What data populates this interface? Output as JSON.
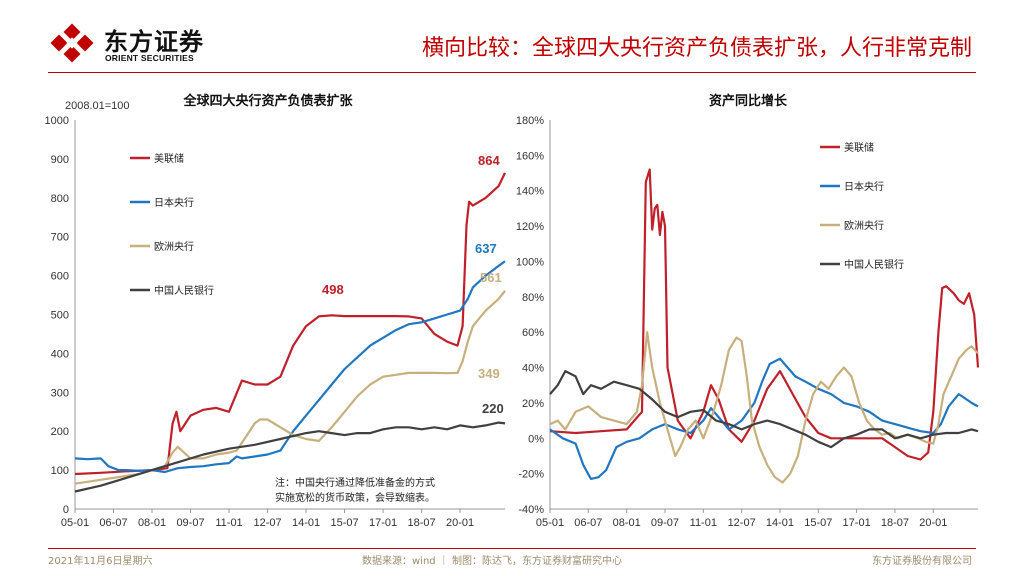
{
  "header": {
    "logo_cn": "东方证券",
    "logo_en": "ORIENT SECURITIES",
    "title": "横向比较：全球四大央行资产负债表扩张，人行非常克制"
  },
  "footer": {
    "date": "2021年11月6日星期六",
    "source": "数据来源：wind ｜ 制图：陈达飞，东方证券财富研究中心",
    "company": "东方证券股份有限公司"
  },
  "colors": {
    "fed": "#c0202a",
    "boj": "#1f77c4",
    "ecb": "#c7b07d",
    "pboc": "#404040",
    "accent": "#c00000"
  },
  "chart_data": [
    {
      "type": "line",
      "title": "全球四大央行资产负债表扩张",
      "unit_label": "2008.01=100",
      "ylim": [
        0,
        1000
      ],
      "yticks": [
        "0",
        "100",
        "200",
        "300",
        "400",
        "500",
        "600",
        "700",
        "800",
        "900",
        "1000"
      ],
      "xlim": [
        2005.0,
        2021.75
      ],
      "xticks": [
        "05-01",
        "06-07",
        "08-01",
        "09-07",
        "11-01",
        "12-07",
        "14-01",
        "15-07",
        "17-01",
        "18-07",
        "20-01"
      ],
      "xtick_positions": [
        2005.0,
        2006.5,
        2008.0,
        2009.5,
        2011.0,
        2012.5,
        2014.0,
        2015.5,
        2017.0,
        2018.5,
        2020.0
      ],
      "legend": [
        "美联储",
        "日本央行",
        "欧洲央行",
        "中国人民银行"
      ],
      "note_lines": [
        "注：中国央行通过降低准备金的方式",
        "实施宽松的货币政策，会导致缩表。"
      ],
      "annotations": [
        {
          "text": "864",
          "series": "美联储",
          "x": 2021.6,
          "y": 864
        },
        {
          "text": "498",
          "series": "美联储",
          "x": 2014.8,
          "y": 498
        },
        {
          "text": "637",
          "series": "日本央行",
          "x": 2021.6,
          "y": 637
        },
        {
          "text": "561",
          "series": "欧洲央行",
          "x": 2021.6,
          "y": 561
        },
        {
          "text": "349",
          "series": "欧洲央行",
          "x": 2019.2,
          "y": 349
        },
        {
          "text": "220",
          "series": "中国人民银行",
          "x": 2021.6,
          "y": 220
        }
      ],
      "series": [
        {
          "name": "美联储",
          "color": "#c0202a",
          "x": [
            2005.0,
            2006.0,
            2007.0,
            2008.0,
            2008.6,
            2008.8,
            2008.95,
            2009.1,
            2009.5,
            2010.0,
            2010.5,
            2011.0,
            2011.5,
            2012.0,
            2012.5,
            2013.0,
            2013.5,
            2014.0,
            2014.5,
            2015.0,
            2015.5,
            2016.0,
            2016.5,
            2017.0,
            2017.5,
            2018.0,
            2018.5,
            2019.0,
            2019.5,
            2019.9,
            2020.1,
            2020.25,
            2020.35,
            2020.5,
            2021.0,
            2021.5,
            2021.75
          ],
          "y": [
            90,
            93,
            97,
            100,
            105,
            220,
            250,
            200,
            240,
            255,
            260,
            250,
            330,
            320,
            320,
            340,
            420,
            470,
            495,
            498,
            496,
            496,
            496,
            496,
            496,
            495,
            490,
            450,
            430,
            420,
            470,
            730,
            790,
            780,
            800,
            830,
            864
          ]
        },
        {
          "name": "日本央行",
          "color": "#1f77c4",
          "x": [
            2005.0,
            2005.5,
            2006.0,
            2006.3,
            2006.7,
            2007.0,
            2007.5,
            2008.0,
            2008.5,
            2009.0,
            2009.5,
            2010.0,
            2010.5,
            2011.0,
            2011.3,
            2011.5,
            2012.0,
            2012.5,
            2013.0,
            2013.5,
            2014.0,
            2014.5,
            2015.0,
            2015.5,
            2016.0,
            2016.5,
            2017.0,
            2017.5,
            2018.0,
            2018.5,
            2019.0,
            2019.5,
            2020.0,
            2020.3,
            2020.5,
            2021.0,
            2021.5,
            2021.75
          ],
          "y": [
            130,
            128,
            130,
            110,
            100,
            100,
            98,
            100,
            95,
            105,
            108,
            110,
            115,
            118,
            135,
            130,
            135,
            140,
            150,
            200,
            240,
            280,
            320,
            360,
            390,
            420,
            440,
            460,
            475,
            480,
            490,
            500,
            510,
            540,
            570,
            600,
            625,
            637
          ]
        },
        {
          "name": "欧洲央行",
          "color": "#c7b07d",
          "x": [
            2005.0,
            2006.0,
            2007.0,
            2007.5,
            2008.0,
            2008.5,
            2008.8,
            2009.0,
            2009.5,
            2010.0,
            2010.5,
            2011.0,
            2011.3,
            2011.6,
            2012.0,
            2012.2,
            2012.5,
            2013.0,
            2013.5,
            2014.0,
            2014.5,
            2015.0,
            2015.5,
            2016.0,
            2016.5,
            2017.0,
            2017.5,
            2018.0,
            2018.5,
            2019.0,
            2019.5,
            2019.9,
            2020.1,
            2020.3,
            2020.5,
            2021.0,
            2021.5,
            2021.75
          ],
          "y": [
            65,
            75,
            85,
            90,
            100,
            110,
            145,
            160,
            130,
            130,
            140,
            145,
            150,
            180,
            220,
            230,
            230,
            210,
            190,
            180,
            175,
            210,
            250,
            290,
            320,
            340,
            345,
            350,
            350,
            350,
            349,
            350,
            380,
            430,
            470,
            510,
            540,
            561
          ]
        },
        {
          "name": "中国人民银行",
          "color": "#404040",
          "x": [
            2005.0,
            2006.0,
            2007.0,
            2008.0,
            2009.0,
            2010.0,
            2011.0,
            2012.0,
            2013.0,
            2014.0,
            2014.5,
            2015.0,
            2015.5,
            2016.0,
            2016.5,
            2017.0,
            2017.5,
            2018.0,
            2018.5,
            2019.0,
            2019.5,
            2020.0,
            2020.5,
            2021.0,
            2021.5,
            2021.75
          ],
          "y": [
            45,
            60,
            80,
            100,
            120,
            140,
            155,
            165,
            180,
            195,
            200,
            195,
            190,
            195,
            195,
            205,
            210,
            210,
            205,
            210,
            205,
            215,
            210,
            215,
            222,
            220
          ]
        }
      ]
    },
    {
      "type": "line",
      "title": "资产同比增长",
      "ylim": [
        -40,
        180
      ],
      "yticks": [
        "-40%",
        "-20%",
        "0%",
        "20%",
        "40%",
        "60%",
        "80%",
        "100%",
        "120%",
        "140%",
        "160%",
        "180%"
      ],
      "xlim": [
        2005.0,
        2021.75
      ],
      "xticks": [
        "05-01",
        "06-07",
        "08-01",
        "09-07",
        "11-01",
        "12-07",
        "14-01",
        "15-07",
        "17-01",
        "18-07",
        "20-01"
      ],
      "xtick_positions": [
        2005.0,
        2006.5,
        2008.0,
        2009.5,
        2011.0,
        2012.5,
        2014.0,
        2015.5,
        2017.0,
        2018.5,
        2020.0
      ],
      "legend": [
        "美联储",
        "日本央行",
        "欧洲央行",
        "中国人民银行"
      ],
      "series": [
        {
          "name": "美联储",
          "color": "#c0202a",
          "x": [
            2005.0,
            2006.0,
            2007.0,
            2008.0,
            2008.6,
            2008.75,
            2008.9,
            2009.0,
            2009.1,
            2009.2,
            2009.3,
            2009.4,
            2009.5,
            2009.6,
            2009.8,
            2010.0,
            2010.5,
            2011.0,
            2011.3,
            2011.6,
            2012.0,
            2012.5,
            2013.0,
            2013.5,
            2014.0,
            2014.5,
            2015.0,
            2015.5,
            2016.0,
            2017.0,
            2018.0,
            2018.5,
            2019.0,
            2019.5,
            2019.8,
            2020.0,
            2020.2,
            2020.35,
            2020.5,
            2020.8,
            2021.0,
            2021.2,
            2021.4,
            2021.6,
            2021.75
          ],
          "y": [
            4,
            3,
            4,
            5,
            15,
            145,
            152,
            118,
            130,
            132,
            115,
            128,
            120,
            40,
            25,
            10,
            0,
            15,
            30,
            22,
            5,
            -2,
            10,
            28,
            38,
            25,
            12,
            3,
            0,
            0,
            0,
            -5,
            -10,
            -12,
            -8,
            15,
            60,
            85,
            86,
            82,
            78,
            76,
            82,
            70,
            40
          ]
        },
        {
          "name": "日本央行",
          "color": "#1f77c4",
          "x": [
            2005.0,
            2005.5,
            2006.0,
            2006.3,
            2006.6,
            2006.9,
            2007.2,
            2007.6,
            2008.0,
            2008.5,
            2009.0,
            2009.5,
            2010.0,
            2010.5,
            2011.0,
            2011.3,
            2011.6,
            2012.0,
            2012.5,
            2013.0,
            2013.3,
            2013.6,
            2014.0,
            2014.3,
            2014.6,
            2015.0,
            2015.5,
            2016.0,
            2016.5,
            2017.0,
            2017.5,
            2018.0,
            2018.5,
            2019.0,
            2019.5,
            2020.0,
            2020.3,
            2020.6,
            2021.0,
            2021.3,
            2021.5,
            2021.75
          ],
          "y": [
            5,
            0,
            -3,
            -15,
            -23,
            -22,
            -18,
            -5,
            -2,
            0,
            5,
            8,
            5,
            3,
            10,
            17,
            12,
            5,
            10,
            20,
            32,
            42,
            45,
            40,
            35,
            32,
            28,
            25,
            20,
            18,
            15,
            10,
            8,
            6,
            4,
            3,
            8,
            18,
            25,
            22,
            20,
            18
          ]
        },
        {
          "name": "欧洲央行",
          "color": "#c7b07d",
          "x": [
            2005.0,
            2005.3,
            2005.6,
            2006.0,
            2006.5,
            2007.0,
            2007.5,
            2008.0,
            2008.4,
            2008.6,
            2008.8,
            2009.0,
            2009.3,
            2009.6,
            2009.9,
            2010.1,
            2010.4,
            2010.7,
            2011.0,
            2011.4,
            2011.7,
            2012.0,
            2012.3,
            2012.5,
            2012.7,
            2012.9,
            2013.2,
            2013.5,
            2013.8,
            2014.1,
            2014.4,
            2014.7,
            2015.0,
            2015.3,
            2015.6,
            2015.9,
            2016.2,
            2016.5,
            2016.8,
            2017.1,
            2017.4,
            2017.7,
            2018.0,
            2018.3,
            2018.6,
            2019.0,
            2019.4,
            2019.7,
            2020.0,
            2020.2,
            2020.4,
            2020.7,
            2021.0,
            2021.3,
            2021.5,
            2021.75
          ],
          "y": [
            8,
            10,
            5,
            15,
            18,
            12,
            10,
            8,
            15,
            30,
            60,
            40,
            20,
            5,
            -10,
            -5,
            5,
            10,
            0,
            15,
            30,
            50,
            57,
            55,
            35,
            10,
            -5,
            -15,
            -22,
            -25,
            -20,
            -10,
            10,
            25,
            32,
            28,
            35,
            40,
            35,
            20,
            10,
            5,
            2,
            3,
            0,
            2,
            0,
            -2,
            -3,
            8,
            25,
            35,
            45,
            50,
            52,
            48
          ]
        },
        {
          "name": "中国人民银行",
          "color": "#404040",
          "x": [
            2005.0,
            2005.3,
            2005.6,
            2006.0,
            2006.3,
            2006.6,
            2007.0,
            2007.5,
            2008.0,
            2008.5,
            2009.0,
            2009.5,
            2010.0,
            2010.5,
            2011.0,
            2011.5,
            2012.0,
            2012.5,
            2013.0,
            2013.5,
            2014.0,
            2014.5,
            2015.0,
            2015.5,
            2016.0,
            2016.5,
            2017.0,
            2017.5,
            2018.0,
            2018.5,
            2019.0,
            2019.5,
            2020.0,
            2020.5,
            2021.0,
            2021.5,
            2021.75
          ],
          "y": [
            25,
            30,
            38,
            35,
            25,
            30,
            28,
            32,
            30,
            28,
            22,
            15,
            12,
            15,
            16,
            10,
            8,
            5,
            8,
            10,
            8,
            5,
            2,
            -2,
            -5,
            0,
            2,
            5,
            5,
            0,
            2,
            0,
            2,
            3,
            3,
            5,
            4
          ]
        }
      ]
    }
  ]
}
